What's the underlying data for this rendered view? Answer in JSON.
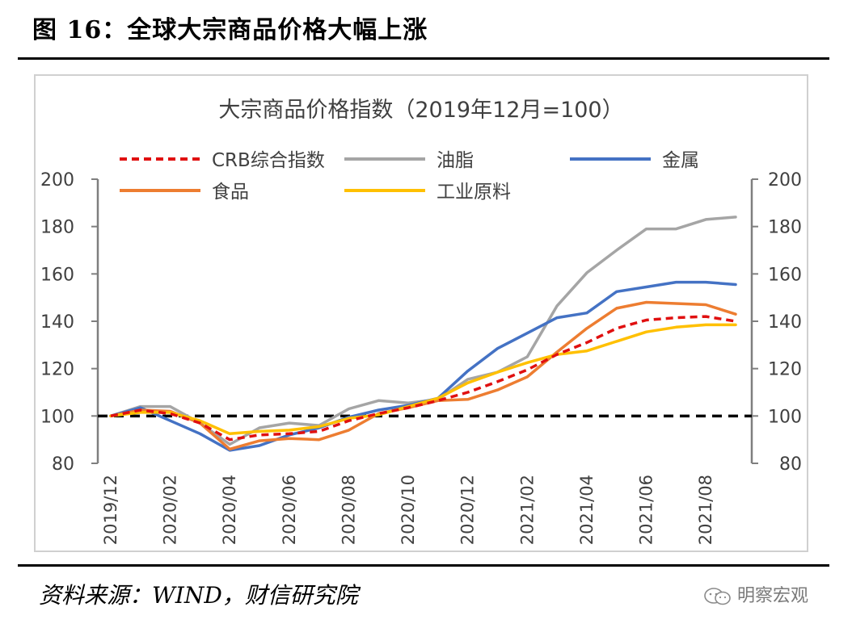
{
  "figure": {
    "title": "图 16：全球大宗商品价格大幅上涨",
    "source": "资料来源：WIND，财信研究院",
    "watermark": "明察宏观"
  },
  "colors": {
    "CRB综合指数": "#e01010",
    "油脂": "#a5a5a5",
    "金属": "#4472c4",
    "食品": "#ed7d31",
    "工业原料": "#ffc000",
    "baseline": "#000000",
    "axis": "#7f7f7f"
  },
  "chart_data": {
    "type": "line",
    "title": "大宗商品价格指数（2019年12月=100）",
    "xlabel": "",
    "ylabel": "",
    "ylim": [
      80,
      200
    ],
    "yticks": [
      80,
      100,
      120,
      140,
      160,
      180,
      200
    ],
    "y2lim": [
      80,
      200
    ],
    "grid": false,
    "legend_position": "top",
    "baseline": 100,
    "x": [
      "2019/12",
      "2020/01",
      "2020/02",
      "2020/03",
      "2020/04",
      "2020/05",
      "2020/06",
      "2020/07",
      "2020/08",
      "2020/09",
      "2020/10",
      "2020/11",
      "2020/12",
      "2021/01",
      "2021/02",
      "2021/03",
      "2021/04",
      "2021/05",
      "2021/06",
      "2021/07",
      "2021/08",
      "2021/09"
    ],
    "xtick_labels": [
      "2019/12",
      "2020/02",
      "2020/04",
      "2020/06",
      "2020/08",
      "2020/10",
      "2020/12",
      "2021/02",
      "2021/04",
      "2021/06",
      "2021/08"
    ],
    "series": [
      {
        "name": "CRB综合指数",
        "style": "dashed",
        "values": [
          100,
          102.5,
          101,
          97,
          90,
          92,
          92.5,
          93.5,
          98,
          101,
          103.5,
          106.5,
          110,
          114.5,
          119.5,
          126,
          131,
          137,
          140.5,
          141.5,
          142,
          140
        ]
      },
      {
        "name": "油脂",
        "style": "solid",
        "values": [
          100,
          104,
          104,
          97,
          88,
          95,
          97,
          96,
          103,
          106.5,
          105.5,
          107,
          115.5,
          118.5,
          125,
          146.5,
          160.5,
          170,
          179,
          179,
          183,
          184
        ]
      },
      {
        "name": "金属",
        "style": "solid",
        "values": [
          100,
          103.5,
          98,
          92.5,
          85.5,
          87.5,
          92,
          95,
          99.5,
          102.5,
          104.5,
          107.5,
          119,
          128.5,
          135,
          141.5,
          143.5,
          152.5,
          154.5,
          156.5,
          156.5,
          155.5
        ]
      },
      {
        "name": "食品",
        "style": "solid",
        "values": [
          100,
          102.5,
          102,
          97,
          86,
          89.5,
          90.5,
          90,
          94,
          101,
          103.5,
          106.5,
          107,
          111,
          116.5,
          127,
          137,
          145.5,
          148,
          147.5,
          147,
          143
        ]
      },
      {
        "name": "工业原料",
        "style": "solid",
        "values": [
          100,
          101.5,
          101.5,
          98,
          92.5,
          93.5,
          94,
          95.5,
          99,
          100.5,
          104,
          107.5,
          114,
          118.5,
          122.5,
          126,
          127.5,
          131.5,
          135.5,
          137.5,
          138.5,
          138.5
        ]
      }
    ]
  }
}
